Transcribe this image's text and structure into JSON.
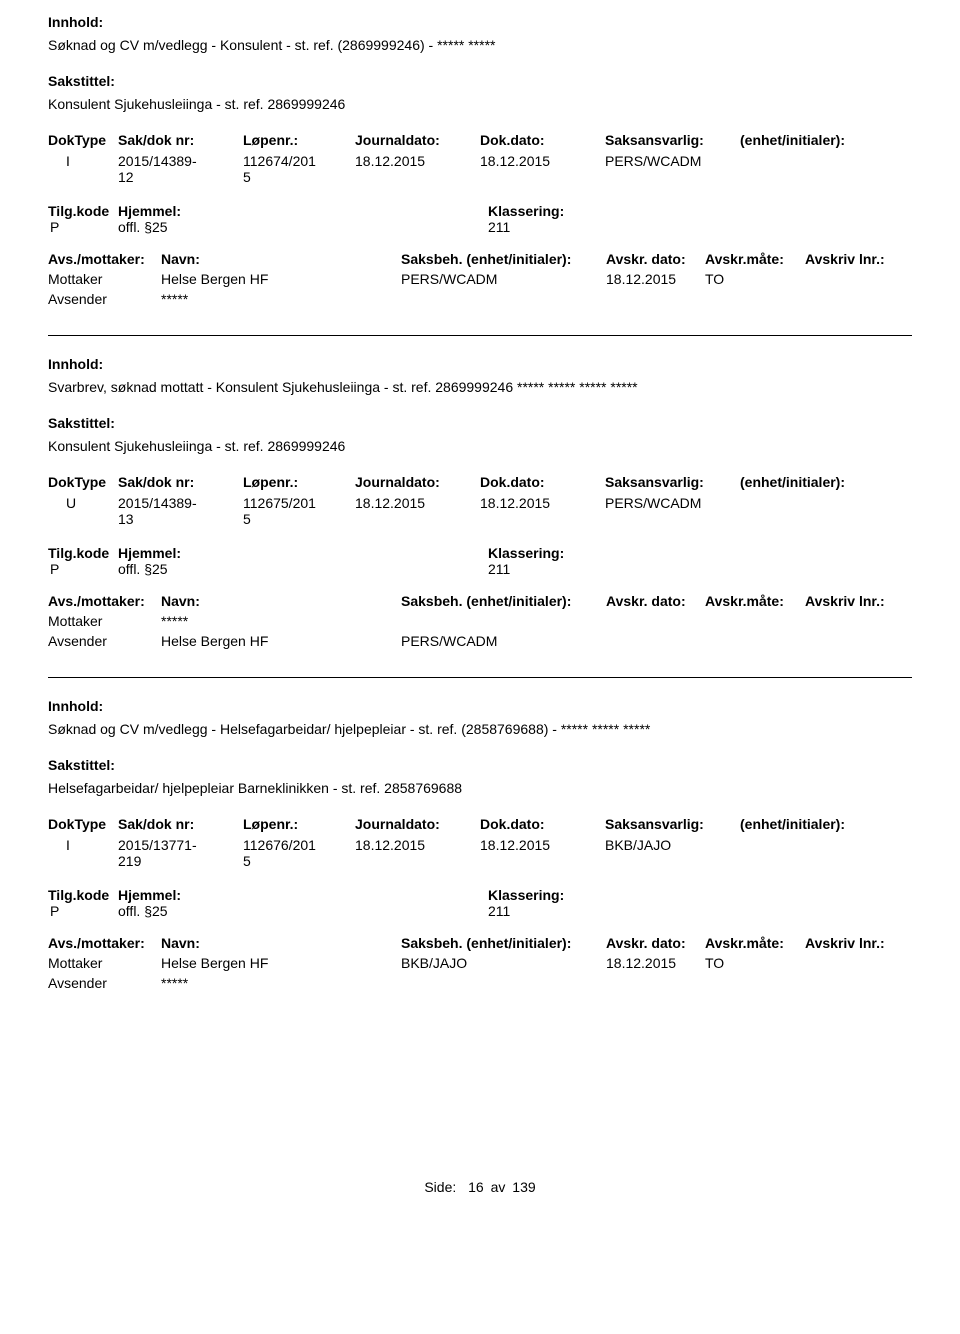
{
  "labels": {
    "innhold": "Innhold:",
    "sakstittel": "Sakstittel:",
    "doktype": "DokType",
    "sakdok": "Sak/dok nr:",
    "lopenr": "Løpenr.:",
    "journaldato": "Journaldato:",
    "dokdato": "Dok.dato:",
    "saksansvarlig": "Saksansvarlig:",
    "enhet": "(enhet/initialer):",
    "tilgkode": "Tilg.kode",
    "hjemmel": "Hjemmel:",
    "klassering": "Klassering:",
    "avsmottaker": "Avs./mottaker:",
    "navn": "Navn:",
    "saksbeh": "Saksbeh.",
    "saksbeh_enhet": "(enhet/initialer):",
    "avskr_dato": "Avskr. dato:",
    "avskr_mate": "Avskr.måte:",
    "avskriv_lnr": "Avskriv lnr.:",
    "mottaker": "Mottaker",
    "avsender": "Avsender"
  },
  "records": [
    {
      "innhold": "Søknad og CV m/vedlegg - Konsulent - st. ref. (2869999246) - ***** *****",
      "sakstittel": "Konsulent Sjukehusleiinga - st. ref. 2869999246",
      "doktype": "I",
      "sakdok": "2015/14389-12",
      "lopenr": "112674/2015",
      "journaldato": "18.12.2015",
      "dokdato": "18.12.2015",
      "saksansvarlig": "PERS/WCADM",
      "tilgkode": "P",
      "hjemmel": "offl. §25",
      "klassering": "211",
      "parties": [
        {
          "role": "Mottaker",
          "name": "Helse Bergen HF",
          "saksbeh": "PERS/WCADM",
          "avskr_dato": "18.12.2015",
          "avskr_mate": "TO"
        },
        {
          "role": "Avsender",
          "name": "*****",
          "saksbeh": "",
          "avskr_dato": "",
          "avskr_mate": ""
        }
      ]
    },
    {
      "innhold": "Svarbrev, søknad mottatt - Konsulent Sjukehusleiinga - st. ref. 2869999246 ***** ***** ***** *****",
      "sakstittel": "Konsulent Sjukehusleiinga - st. ref. 2869999246",
      "doktype": "U",
      "sakdok": "2015/14389-13",
      "lopenr": "112675/2015",
      "journaldato": "18.12.2015",
      "dokdato": "18.12.2015",
      "saksansvarlig": "PERS/WCADM",
      "tilgkode": "P",
      "hjemmel": "offl. §25",
      "klassering": "211",
      "parties": [
        {
          "role": "Mottaker",
          "name": "*****",
          "saksbeh": "",
          "avskr_dato": "",
          "avskr_mate": ""
        },
        {
          "role": "Avsender",
          "name": "Helse Bergen HF",
          "saksbeh": "PERS/WCADM",
          "avskr_dato": "",
          "avskr_mate": ""
        }
      ]
    },
    {
      "innhold": "Søknad og CV m/vedlegg - Helsefagarbeidar/ hjelpepleiar - st. ref. (2858769688) - ***** ***** *****",
      "sakstittel": "Helsefagarbeidar/ hjelpepleiar Barneklinikken - st. ref. 2858769688",
      "doktype": "I",
      "sakdok": "2015/13771-219",
      "lopenr": "112676/2015",
      "journaldato": "18.12.2015",
      "dokdato": "18.12.2015",
      "saksansvarlig": "BKB/JAJO",
      "tilgkode": "P",
      "hjemmel": "offl. §25",
      "klassering": "211",
      "parties": [
        {
          "role": "Mottaker",
          "name": "Helse Bergen HF",
          "saksbeh": "BKB/JAJO",
          "avskr_dato": "18.12.2015",
          "avskr_mate": "TO"
        },
        {
          "role": "Avsender",
          "name": "*****",
          "saksbeh": "",
          "avskr_dato": "",
          "avskr_mate": ""
        }
      ]
    }
  ],
  "footer": {
    "label": "Side:",
    "page": "16",
    "sep": "av",
    "total": "139"
  }
}
